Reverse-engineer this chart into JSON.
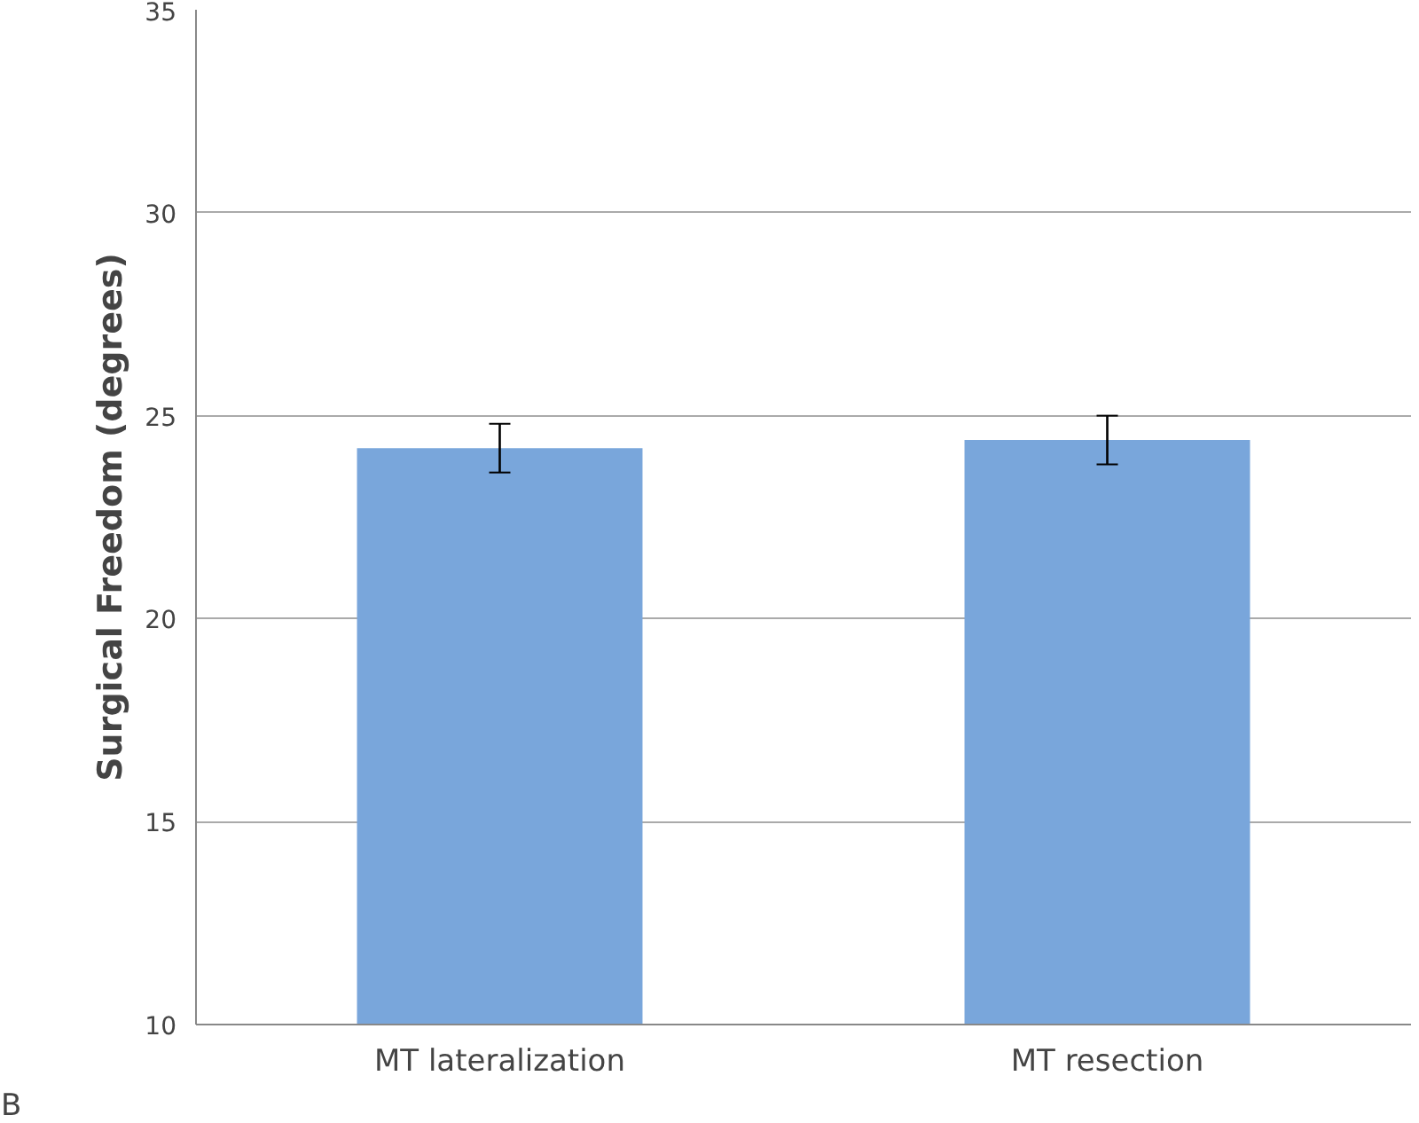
{
  "chart_data": {
    "type": "bar",
    "ylabel": "Surgical Freedom (degrees)",
    "categories": [
      "MT lateralization",
      "MT resection"
    ],
    "values": [
      24.2,
      24.4
    ],
    "errors": [
      0.6,
      0.6
    ],
    "color": "#79a6db",
    "ylim": [
      10,
      35
    ],
    "yticks": [
      10,
      15,
      20,
      25,
      30,
      35
    ],
    "grid": "y",
    "annotations": [
      "B"
    ]
  }
}
